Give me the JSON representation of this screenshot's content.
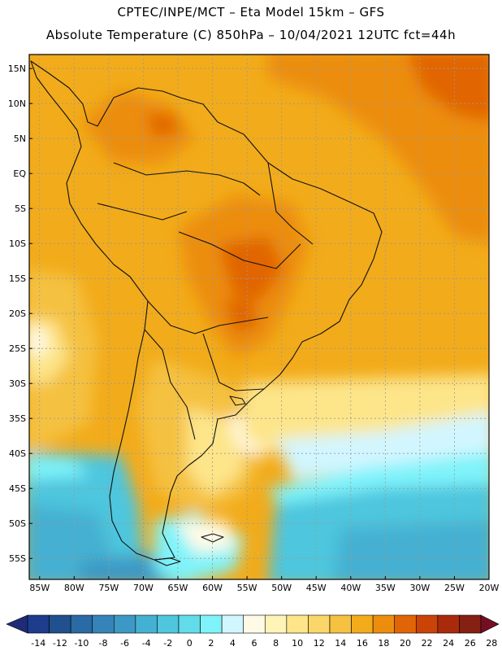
{
  "header": {
    "line1": "CPTEC/INPE/MCT –  Eta Model 15km – GFS",
    "line2": "Absolute Temperature (C) 850hPa – 10/04/2021 12UTC fct=44h"
  },
  "map": {
    "lat_labels": [
      "15N",
      "10N",
      "5N",
      "EQ",
      "5S",
      "10S",
      "15S",
      "20S",
      "25S",
      "30S",
      "35S",
      "40S",
      "45S",
      "50S",
      "55S"
    ],
    "lat_values": [
      15,
      10,
      5,
      0,
      -5,
      -10,
      -15,
      -20,
      -25,
      -30,
      -35,
      -40,
      -45,
      -50,
      -55
    ],
    "lon_labels": [
      "85W",
      "80W",
      "75W",
      "70W",
      "65W",
      "60W",
      "55W",
      "50W",
      "45W",
      "40W",
      "35W",
      "30W",
      "25W",
      "20W"
    ],
    "lon_values": [
      -85,
      -80,
      -75,
      -70,
      -65,
      -60,
      -55,
      -50,
      -45,
      -40,
      -35,
      -30,
      -25,
      -20
    ],
    "lon_range": [
      -86.5,
      -20
    ],
    "lat_range": [
      -58,
      17
    ],
    "gridlines": true
  },
  "colorbar": {
    "labels": [
      "-14",
      "-12",
      "-10",
      "-8",
      "-6",
      "-4",
      "-2",
      "0",
      "2",
      "4",
      "6",
      "8",
      "10",
      "12",
      "14",
      "16",
      "18",
      "20",
      "22",
      "24",
      "26",
      "28"
    ],
    "colors": [
      "#1e3c8c",
      "#21508f",
      "#2a6aa5",
      "#3583b8",
      "#3c99c5",
      "#44b0d2",
      "#4dc6de",
      "#62dcea",
      "#7ff3fa",
      "#d2f6ff",
      "#fffae6",
      "#fff4b8",
      "#fde58a",
      "#fad668",
      "#f5c140",
      "#f2ab1a",
      "#ec8d0e",
      "#e16506",
      "#ca4408",
      "#aa2b0c",
      "#862012"
    ],
    "under_color": "#1e2c78",
    "over_color": "#750e22"
  }
}
